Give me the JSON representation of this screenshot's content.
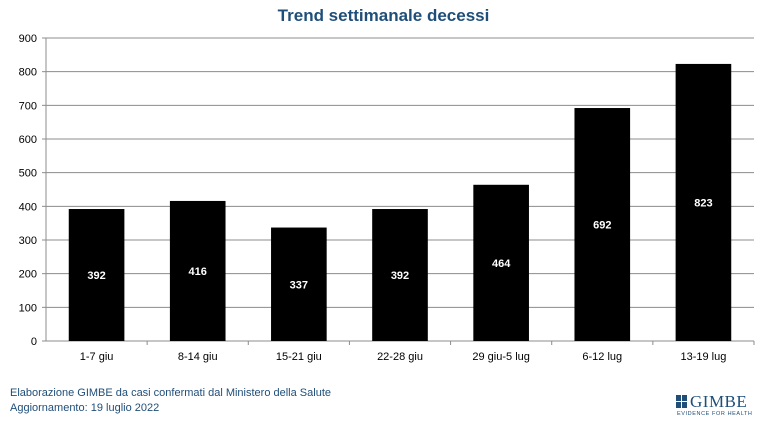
{
  "chart_data": {
    "type": "bar",
    "title": "Trend settimanale decessi",
    "categories": [
      "1-7 giu",
      "8-14 giu",
      "15-21 giu",
      "22-28 giu",
      "29 giu-5 lug",
      "6-12 lug",
      "13-19 lug"
    ],
    "values": [
      392,
      416,
      337,
      392,
      464,
      692,
      823
    ],
    "ylim": [
      0,
      900
    ],
    "yticks": [
      0,
      100,
      200,
      300,
      400,
      500,
      600,
      700,
      800,
      900
    ],
    "xlabel": "",
    "ylabel": "",
    "grid": true,
    "legend": "none",
    "bar_color": "#000000",
    "label_color": "#ffffff"
  },
  "footer": {
    "line1": "Elaborazione GIMBE da casi confermati dal Ministero della Salute",
    "line2": "Aggiornamento: 19 luglio 2022"
  },
  "logo": {
    "name": "GIMBE",
    "tagline": "EVIDENCE FOR HEALTH"
  },
  "colors": {
    "title": "#1f4e79",
    "footer": "#1f4e79"
  }
}
